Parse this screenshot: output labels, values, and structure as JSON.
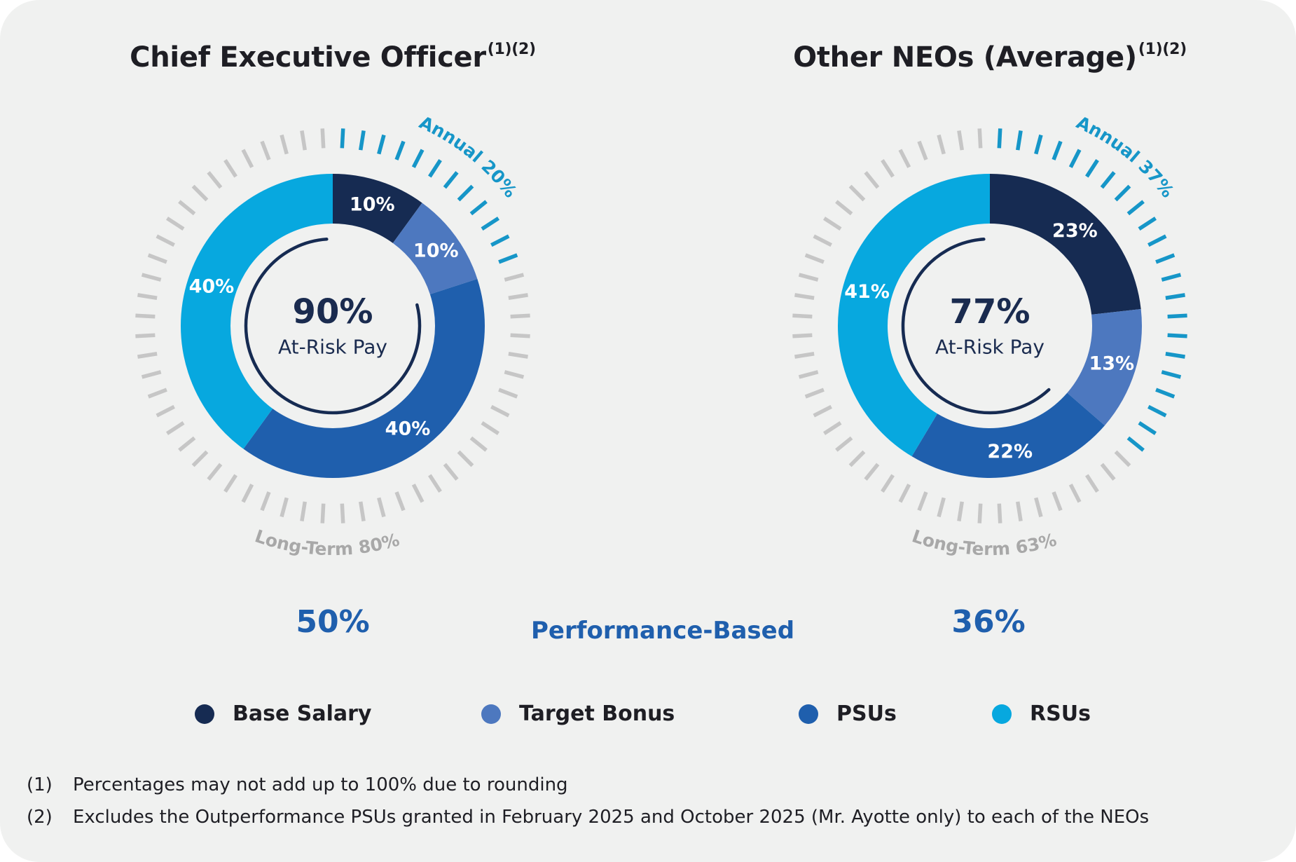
{
  "titles": {
    "ceo": "Chief Executive Officer",
    "ceo_sup": "(1)(2)",
    "neo": "Other NEOs (Average)",
    "neo_sup": "(1)(2)"
  },
  "colors": {
    "base_salary": "#162b52",
    "target_bonus": "#4d78bf",
    "psus": "#1f5fad",
    "rsus": "#07a8df",
    "annual_ticks": "#1696c8",
    "longterm_ticks": "#c6c6c6",
    "performance": "#1f5fad"
  },
  "chart_data": [
    {
      "type": "pie",
      "title": "Chief Executive Officer",
      "center_value": "90%",
      "center_label": "At-Risk Pay",
      "slices": [
        {
          "name": "Base Salary",
          "value": 10,
          "label": "10%"
        },
        {
          "name": "Target Bonus",
          "value": 10,
          "label": "10%"
        },
        {
          "name": "PSUs",
          "value": 40,
          "label": "40%"
        },
        {
          "name": "RSUs",
          "value": 40,
          "label": "40%"
        }
      ],
      "annual_label": "Annual 20%",
      "long_term_label": "Long-Term 80%",
      "annual_share": 20,
      "performance_based": "50%"
    },
    {
      "type": "pie",
      "title": "Other NEOs (Average)",
      "center_value": "77%",
      "center_label": "At-Risk Pay",
      "slices": [
        {
          "name": "Base Salary",
          "value": 23,
          "label": "23%"
        },
        {
          "name": "Target Bonus",
          "value": 13,
          "label": "13%"
        },
        {
          "name": "PSUs",
          "value": 22,
          "label": "22%"
        },
        {
          "name": "RSUs",
          "value": 41,
          "label": "41%"
        }
      ],
      "annual_label": "Annual 37%",
      "long_term_label": "Long-Term 63%",
      "annual_share": 37,
      "performance_based": "36%"
    }
  ],
  "performance_label": "Performance-Based",
  "legend": [
    {
      "label": "Base Salary"
    },
    {
      "label": "Target Bonus"
    },
    {
      "label": "PSUs"
    },
    {
      "label": "RSUs"
    }
  ],
  "footnotes": [
    {
      "num": "(1)",
      "text": "Percentages may not add up to 100% due to rounding"
    },
    {
      "num": "(2)",
      "text": "Excludes the Outperformance PSUs granted in February 2025 and October 2025 (Mr. Ayotte only) to each of the NEOs"
    }
  ]
}
